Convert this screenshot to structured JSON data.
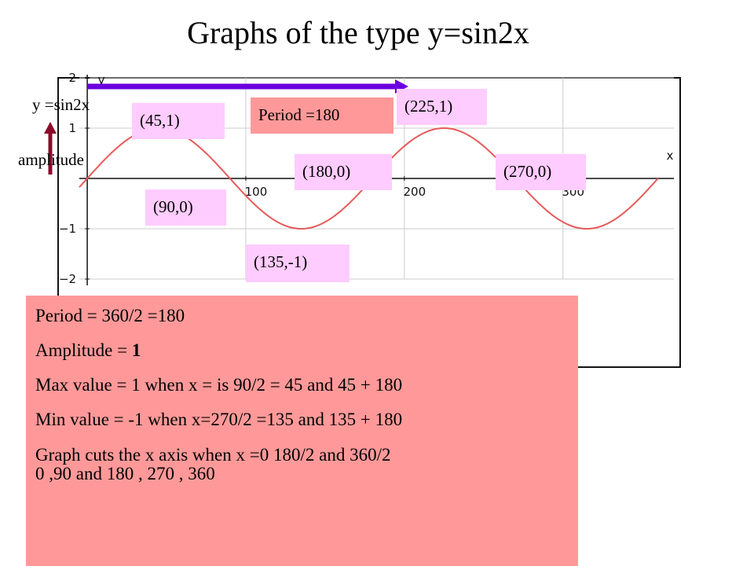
{
  "title": "Graphs of the type y=sin2x",
  "labels": {
    "equation": "y  =sin2x",
    "amplitude": "amplitude",
    "period": "Period =180",
    "p45": "(45,1)",
    "p225": "(225,1)",
    "p90": "(90,0)",
    "p180": "(180,0)",
    "p270": "(270,0)",
    "p135": "(135,-1)"
  },
  "info": {
    "line1": "Period = 360/2  =180",
    "line2_text": "Amplitude =  ",
    "line2_value": "1",
    "line3": "Max value = 1 when x = is  90/2   = 45 and 45 + 180",
    "line4": "Min value = -1 when x=270/2 =135 and 135 + 180",
    "line5": "Graph cuts the x axis when x =0  180/2 and 360/2",
    "line6": "0 ,90 and 180 , 270  ,  360"
  },
  "colors": {
    "curve": "#e85a5a",
    "period_arrow": "#6b00e0",
    "amplitude_arrow": "#8b0a2a",
    "pink_label": "#ffccff",
    "salmon_box": "#ff9999",
    "grid": "#cccccc"
  },
  "chart_data": {
    "type": "line",
    "function": "y=sin(2x)",
    "x_range": [
      0,
      360
    ],
    "xlim": [
      -5,
      370
    ],
    "ylim": [
      -2,
      2
    ],
    "x_ticks": [
      {
        "value": 100,
        "label": "100"
      },
      {
        "value": 200,
        "label": "200"
      },
      {
        "value": 300,
        "label": "300"
      }
    ],
    "y_ticks": [
      {
        "value": 2,
        "label": "2"
      },
      {
        "value": 1,
        "label": "1"
      },
      {
        "value": -1,
        "label": "−1"
      },
      {
        "value": -2,
        "label": "−2"
      }
    ],
    "axis_labels": {
      "x": "x",
      "y": "y"
    },
    "grid": true
  }
}
